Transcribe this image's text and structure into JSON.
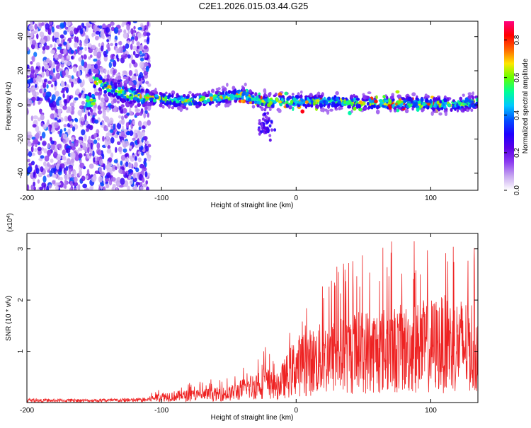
{
  "title": "C2E1.2026.015.03.44.G25",
  "chart_data": [
    {
      "type": "heatmap",
      "title": "C2E1.2026.015.03.44.G25",
      "xlabel": "Height of straight line (km)",
      "ylabel": "Frequency (Hz)",
      "xlim": [
        -200,
        135
      ],
      "ylim": [
        -50,
        49
      ],
      "xticks": [
        -200,
        -100,
        0,
        100
      ],
      "yticks": [
        40,
        20,
        0,
        -20,
        -40
      ],
      "colorbar": {
        "label": "Normalized spectral amplitude",
        "range": [
          0.0,
          0.9
        ],
        "ticks": [
          0.0,
          0.2,
          0.4,
          0.6,
          0.8
        ],
        "colormap": [
          "#ffffff",
          "#c8a8f0",
          "#8c3cf0",
          "#5a00e6",
          "#1e00ff",
          "#0050ff",
          "#00c8ff",
          "#00ff96",
          "#64ff00",
          "#ffe600",
          "#ff6400",
          "#ff0000",
          "#ff0080"
        ]
      },
      "noise_region_x": [
        -200,
        -112
      ],
      "band_center_hz": [
        {
          "x": -150,
          "y": 14
        },
        {
          "x": -130,
          "y": 7
        },
        {
          "x": -110,
          "y": 4
        },
        {
          "x": -80,
          "y": 2
        },
        {
          "x": -60,
          "y": 4
        },
        {
          "x": -40,
          "y": 6
        },
        {
          "x": -25,
          "y": 2
        },
        {
          "x": 0,
          "y": 2
        },
        {
          "x": 30,
          "y": 2
        },
        {
          "x": 60,
          "y": 1
        },
        {
          "x": 90,
          "y": 1
        },
        {
          "x": 120,
          "y": 0
        },
        {
          "x": 135,
          "y": 2
        }
      ],
      "band_halfwidth_hz": 6,
      "side_feature": {
        "x": -23,
        "y": -12
      }
    },
    {
      "type": "line",
      "xlabel": "Height of straight line (km)",
      "ylabel": "SNR (10 * v/v)",
      "scale_label": "(x10",
      "scale_exponent": "4",
      "scale_suffix": ")",
      "xlim": [
        -200,
        135
      ],
      "ylim": [
        0,
        3.3
      ],
      "xticks": [
        -200,
        -100,
        0,
        100
      ],
      "yticks": [
        1,
        2,
        3
      ],
      "color": "#ee2222",
      "envelope": [
        {
          "x": -200,
          "mean": 0.04,
          "peak": 0.08
        },
        {
          "x": -150,
          "mean": 0.04,
          "peak": 0.07
        },
        {
          "x": -112,
          "mean": 0.05,
          "peak": 0.1
        },
        {
          "x": -100,
          "mean": 0.12,
          "peak": 0.35
        },
        {
          "x": -80,
          "mean": 0.14,
          "peak": 0.4
        },
        {
          "x": -50,
          "mean": 0.18,
          "peak": 0.5
        },
        {
          "x": -30,
          "mean": 0.35,
          "peak": 0.85
        },
        {
          "x": -25,
          "mean": 0.45,
          "peak": 1.3
        },
        {
          "x": -15,
          "mean": 0.3,
          "peak": 0.9
        },
        {
          "x": 0,
          "mean": 0.75,
          "peak": 1.6
        },
        {
          "x": 20,
          "mean": 0.9,
          "peak": 2.6
        },
        {
          "x": 50,
          "mean": 1.05,
          "peak": 3.1
        },
        {
          "x": 80,
          "mean": 1.1,
          "peak": 3.2
        },
        {
          "x": 110,
          "mean": 1.2,
          "peak": 3.2
        },
        {
          "x": 135,
          "mean": 1.15,
          "peak": 3.0
        }
      ]
    }
  ]
}
